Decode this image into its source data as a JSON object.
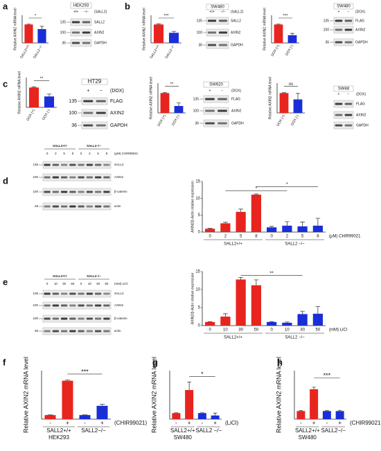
{
  "panel_labels": [
    "a",
    "b",
    "c",
    "d",
    "e",
    "f",
    "g",
    "h"
  ],
  "chart_data": [
    {
      "type": "bar",
      "ylabel": "Relative AXIN2 mRNA level",
      "categories": [
        "SALL2+/+",
        "SALL2−/−"
      ],
      "values": [
        1,
        0.75
      ],
      "errors": [
        0.02,
        0.15
      ],
      "colors": [
        "#e8241e",
        "#1a2ed8"
      ],
      "ylim": [
        0,
        1.5
      ],
      "significance": [
        "*"
      ]
    },
    {
      "type": "bar",
      "ylabel": "Relative AXIN2 mRNA level",
      "categories": [
        "SALL2+/+",
        "SALL2−/−"
      ],
      "values": [
        1,
        0.55
      ],
      "errors": [
        0.03,
        0.08
      ],
      "colors": [
        "#e8241e",
        "#1a2ed8"
      ],
      "ylim": [
        0,
        1.5
      ],
      "significance": [
        "***"
      ]
    },
    {
      "type": "bar",
      "ylabel": "Relative AXIN2 mRNA level",
      "categories": [
        "DOX (+)",
        "DOX (-)"
      ],
      "values": [
        1,
        0.42
      ],
      "errors": [
        0.02,
        0.1
      ],
      "colors": [
        "#e8241e",
        "#1a2ed8"
      ],
      "ylim": [
        0,
        1.5
      ],
      "significance": [
        "***"
      ]
    },
    {
      "type": "bar",
      "ylabel": "Relative AXIN2 mRNA level",
      "categories": [
        "DOX (+)",
        "DOX (-)"
      ],
      "values": [
        1,
        0.55
      ],
      "errors": [
        0.03,
        0.12
      ],
      "colors": [
        "#e8241e",
        "#1a2ed8"
      ],
      "ylim": [
        0,
        1.5
      ],
      "significance": [
        "**"
      ]
    },
    {
      "type": "bar",
      "ylabel": "Relative AXIN2 mRNA level",
      "categories": [
        "DOX (+)",
        "DOX (-)"
      ],
      "values": [
        1,
        0.35
      ],
      "errors": [
        0.02,
        0.15
      ],
      "colors": [
        "#e8241e",
        "#1a2ed8"
      ],
      "ylim": [
        0,
        1.5
      ],
      "significance": [
        "**"
      ]
    },
    {
      "type": "bar",
      "ylabel": "Relative AXIN2 mRNA level",
      "categories": [
        "DOX (+)",
        "DOX (-)"
      ],
      "values": [
        1,
        0.68
      ],
      "errors": [
        0.02,
        0.3
      ],
      "colors": [
        "#e8241e",
        "#1a2ed8"
      ],
      "ylim": [
        0,
        1.5
      ],
      "significance": [
        "ns"
      ]
    },
    {
      "type": "bar",
      "ylabel": "AXIN2/β-Actin relative expression",
      "categories": [
        "0",
        "2",
        "5",
        "8",
        "0",
        "2",
        "5",
        "8"
      ],
      "values": [
        1,
        2.6,
        6,
        11.1,
        1.4,
        1.9,
        1.7,
        1.9
      ],
      "errors": [
        0.1,
        0.3,
        0.8,
        0.2,
        0.3,
        1.2,
        1.3,
        2.2
      ],
      "colors": [
        "#e8241e",
        "#e8241e",
        "#e8241e",
        "#e8241e",
        "#1a2ed8",
        "#1a2ed8",
        "#1a2ed8",
        "#1a2ed8"
      ],
      "ylim": [
        0,
        15
      ],
      "yticks": [
        0,
        5,
        10,
        15
      ],
      "unit": "(μM) CHIR99021",
      "groups": [
        "SALL2+/+",
        "SALL2 −/−"
      ],
      "significance": [
        "*",
        "*"
      ]
    },
    {
      "type": "bar",
      "ylabel": "AXIN2/β-Actin relative expression",
      "categories": [
        "0",
        "10",
        "30",
        "50",
        "0",
        "10",
        "30",
        "50"
      ],
      "values": [
        1,
        2.5,
        12.8,
        11.2,
        1,
        0.8,
        3.2,
        3.3
      ],
      "errors": [
        0.1,
        0.8,
        0.6,
        1.5,
        0.1,
        0.2,
        0.8,
        2
      ],
      "colors": [
        "#e8241e",
        "#e8241e",
        "#e8241e",
        "#e8241e",
        "#1a2ed8",
        "#1a2ed8",
        "#1a2ed8",
        "#1a2ed8"
      ],
      "ylim": [
        0,
        15
      ],
      "yticks": [
        0,
        5,
        10,
        15
      ],
      "unit": "(mM) LiCl",
      "groups": [
        "SALL2+/+",
        "SALL2 −/−"
      ],
      "significance": [
        "**"
      ]
    },
    {
      "type": "bar",
      "ylabel": "Relative AXIN2 mRNA level",
      "categories": [
        "-",
        "+",
        "-",
        "+"
      ],
      "values": [
        1,
        9.5,
        1,
        3.3
      ],
      "errors": [
        0.05,
        0.15,
        0.05,
        0.4
      ],
      "colors": [
        "#e8241e",
        "#e8241e",
        "#1a2ed8",
        "#1a2ed8"
      ],
      "ylim": [
        0,
        12
      ],
      "unit": "(CHIR99021)",
      "groups": [
        "SALL2+/+",
        "SALL2−/−"
      ],
      "xlabel": "HEK293",
      "significance": [
        "***"
      ]
    },
    {
      "type": "bar",
      "ylabel": "Relative AXIN2 mRNA level",
      "categories": [
        "-",
        "+",
        "-",
        "+"
      ],
      "values": [
        1,
        4.8,
        1,
        0.6
      ],
      "errors": [
        0.05,
        1.3,
        0.05,
        0.4
      ],
      "colors": [
        "#e8241e",
        "#e8241e",
        "#1a2ed8",
        "#1a2ed8"
      ],
      "ylim": [
        0,
        8
      ],
      "unit": "(LiCl)",
      "groups": [
        "SALL2+/+",
        "SALL2 −/−"
      ],
      "xlabel": "SW480",
      "significance": [
        "*"
      ]
    },
    {
      "type": "bar",
      "ylabel": "Relative AXIN2 mRNA level",
      "categories": [
        "-",
        "+",
        "-",
        "+"
      ],
      "values": [
        1,
        3.7,
        1,
        1
      ],
      "errors": [
        0.05,
        0.25,
        0.05,
        0.1
      ],
      "colors": [
        "#e8241e",
        "#e8241e",
        "#1a2ed8",
        "#1a2ed8"
      ],
      "ylim": [
        0,
        6
      ],
      "unit": "(CHIR99021)",
      "groups": [
        "SALL2+/+",
        "SALL2−/−"
      ],
      "xlabel": "SW480",
      "significance": [
        "***"
      ]
    }
  ],
  "blots": [
    {
      "title": "HEK293",
      "lanes": [
        "+/+",
        "−/−"
      ],
      "note": "(SALL2)",
      "markers": [
        "135",
        "100",
        "36"
      ],
      "proteins": [
        "SALL2",
        "AXIN2",
        "GAPDH"
      ]
    },
    {
      "title": "SW480",
      "lanes": [
        "+/+",
        "−/−"
      ],
      "note": "(SALL2)",
      "markers": [
        "135",
        "100",
        "36"
      ],
      "proteins": [
        "SALL2",
        "AXIN2",
        "GAPDH"
      ]
    },
    {
      "title": "SW480",
      "lanes": [
        "+",
        "−"
      ],
      "note": "(DOX)",
      "markers": [
        "135",
        "100",
        "36"
      ],
      "proteins": [
        "FLAG",
        "AXIN2",
        "GAPDH"
      ]
    },
    {
      "title": "HT29",
      "lanes": [
        "+",
        "−"
      ],
      "note": "(DOX)",
      "markers": [
        "135",
        "100",
        "36"
      ],
      "proteins": [
        "FLAG",
        "AXIN2",
        "GAPDH"
      ]
    },
    {
      "title": "SW620",
      "lanes": [
        "+",
        "−"
      ],
      "note": "(DOX)",
      "markers": [
        "135",
        "100",
        "36"
      ],
      "proteins": [
        "FLAG",
        "AXIN2",
        "GAPDH"
      ]
    },
    {
      "title": "SW48",
      "lanes": [
        "+",
        "−"
      ],
      "note": "(DOX)",
      "proteins": [
        "FLAG",
        "AXIN2",
        "GAPDH"
      ]
    },
    {
      "groups": [
        "SALL2+/+",
        "SALL2−/−"
      ],
      "lanes": [
        "0",
        "2",
        "5",
        "8",
        "0",
        "2",
        "5",
        "8"
      ],
      "note": "(μM) CHIR99021",
      "markers": [
        "135",
        "100",
        "100",
        "48"
      ],
      "proteins": [
        "SALL2",
        "AXIN2",
        "β-catenin",
        "actin"
      ]
    },
    {
      "groups": [
        "SALL2+/+",
        "SALL2−/−"
      ],
      "lanes": [
        "0",
        "10",
        "30",
        "50",
        "0",
        "10",
        "30",
        "50"
      ],
      "note": "(mM) LiCl",
      "markers": [
        "135",
        "100",
        "100",
        "48"
      ],
      "proteins": [
        "SALL2",
        "AXIN2",
        "β-catenin",
        "actin"
      ]
    }
  ]
}
